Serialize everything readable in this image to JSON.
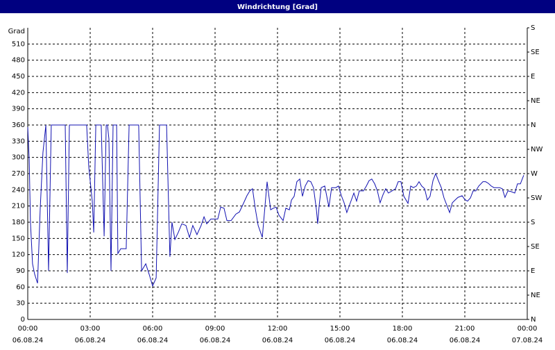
{
  "chart_data": {
    "type": "line",
    "title": "Windrichtung [Grad]",
    "y_label": "Grad",
    "grid": true,
    "xlim": [
      0,
      24
    ],
    "xticks": [
      {
        "value": 0,
        "label": "00:00",
        "date": "06.08.24"
      },
      {
        "value": 3,
        "label": "03:00",
        "date": "06.08.24"
      },
      {
        "value": 6,
        "label": "06:00",
        "date": "06.08.24"
      },
      {
        "value": 9,
        "label": "09:00",
        "date": "06.08.24"
      },
      {
        "value": 12,
        "label": "12:00",
        "date": "06.08.24"
      },
      {
        "value": 15,
        "label": "15:00",
        "date": "06.08.24"
      },
      {
        "value": 18,
        "label": "18:00",
        "date": "06.08.24"
      },
      {
        "value": 21,
        "label": "21:00",
        "date": "06.08.24"
      },
      {
        "value": 24,
        "label": "00:00",
        "date": "07.08.24"
      }
    ],
    "ylim": [
      0,
      540
    ],
    "yticks": [
      0,
      30,
      60,
      90,
      120,
      150,
      180,
      210,
      240,
      270,
      300,
      330,
      360,
      390,
      420,
      450,
      480,
      510
    ],
    "y2lim": [
      0,
      540
    ],
    "y2ticks": [
      {
        "value": 0,
        "label": "N"
      },
      {
        "value": 45,
        "label": "NE"
      },
      {
        "value": 90,
        "label": "E"
      },
      {
        "value": 135,
        "label": "SE"
      },
      {
        "value": 180,
        "label": "S"
      },
      {
        "value": 225,
        "label": "SW"
      },
      {
        "value": 270,
        "label": "W"
      },
      {
        "value": 315,
        "label": "NW"
      },
      {
        "value": 360,
        "label": "N"
      },
      {
        "value": 405,
        "label": "NE"
      },
      {
        "value": 450,
        "label": "E"
      },
      {
        "value": 495,
        "label": "SE"
      },
      {
        "value": 540,
        "label": "S"
      }
    ],
    "x": [
      0,
      0.07,
      0.13,
      0.23,
      0.33,
      0.47,
      0.6,
      0.73,
      0.87,
      1,
      1.13,
      1.27,
      1.67,
      1.8,
      1.9,
      2,
      2.83,
      2.93,
      3.1,
      3.17,
      3.27,
      3.43,
      3.53,
      3.67,
      3.77,
      3.83,
      3.9,
      4,
      4.1,
      4.27,
      4.33,
      4.47,
      4.6,
      4.73,
      4.87,
      5.33,
      5.47,
      5.67,
      5.83,
      6,
      6.17,
      6.33,
      6.67,
      6.83,
      6.93,
      7.07,
      7.23,
      7.4,
      7.6,
      7.77,
      7.93,
      8.13,
      8.33,
      8.47,
      8.6,
      8.8,
      8.93,
      9.13,
      9.27,
      9.43,
      9.57,
      9.77,
      10,
      10.17,
      10.33,
      10.53,
      10.67,
      10.8,
      10.93,
      11.07,
      11.27,
      11.5,
      11.67,
      11.8,
      11.93,
      12.07,
      12.27,
      12.4,
      12.57,
      12.67,
      12.8,
      12.93,
      13.07,
      13.2,
      13.33,
      13.47,
      13.6,
      13.73,
      13.87,
      13.93,
      14,
      14.1,
      14.27,
      14.47,
      14.6,
      14.8,
      14.93,
      15.07,
      15.2,
      15.33,
      15.5,
      15.67,
      15.8,
      15.93,
      16.13,
      16.27,
      16.4,
      16.53,
      16.67,
      16.8,
      16.93,
      17.07,
      17.2,
      17.33,
      17.5,
      17.67,
      17.8,
      17.93,
      18.07,
      18.27,
      18.4,
      18.53,
      18.67,
      18.8,
      18.93,
      19.07,
      19.2,
      19.33,
      19.47,
      19.6,
      19.73,
      19.87,
      20,
      20.13,
      20.27,
      20.4,
      20.53,
      20.67,
      20.87,
      21,
      21.13,
      21.27,
      21.4,
      21.53,
      21.67,
      21.87,
      22,
      22.13,
      22.27,
      22.4,
      22.53,
      22.67,
      22.8,
      22.93,
      23.07,
      23.2,
      23.4,
      23.53,
      23.67,
      23.83
    ],
    "series": [
      {
        "color": "#1010b0",
        "values": [
          356,
          295,
          180,
          103,
          84,
          67,
          206,
          309,
          360,
          90,
          360,
          360,
          360,
          360,
          86,
          360,
          360,
          283,
          219,
          161,
          360,
          360,
          360,
          154,
          360,
          360,
          334,
          90,
          360,
          360,
          122,
          131,
          131,
          131,
          360,
          360,
          90,
          103,
          84,
          62,
          77,
          360,
          360,
          116,
          180,
          148,
          161,
          177,
          174,
          152,
          174,
          157,
          174,
          190,
          177,
          186,
          186,
          186,
          208,
          206,
          183,
          183,
          195,
          199,
          212,
          229,
          238,
          242,
          206,
          174,
          152,
          255,
          203,
          206,
          208,
          193,
          183,
          206,
          203,
          221,
          228,
          255,
          260,
          228,
          247,
          257,
          255,
          244,
          203,
          177,
          210,
          244,
          247,
          208,
          244,
          244,
          247,
          229,
          216,
          198,
          216,
          234,
          219,
          238,
          238,
          247,
          257,
          260,
          251,
          238,
          216,
          231,
          242,
          234,
          238,
          242,
          255,
          255,
          228,
          215,
          247,
          244,
          247,
          255,
          247,
          242,
          221,
          228,
          257,
          270,
          257,
          244,
          225,
          212,
          198,
          216,
          221,
          226,
          229,
          222,
          219,
          225,
          238,
          238,
          247,
          255,
          255,
          252,
          247,
          244,
          244,
          244,
          242,
          226,
          238,
          237,
          234,
          251,
          251,
          267
        ]
      }
    ]
  }
}
